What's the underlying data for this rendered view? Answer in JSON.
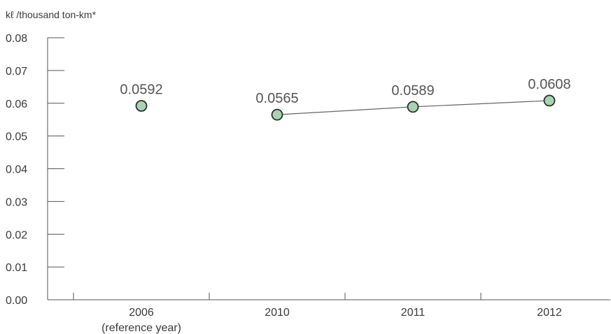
{
  "chart_data": {
    "type": "line",
    "unit_label": "kℓ /thousand ton-km*",
    "categories": [
      "2006",
      "2010",
      "2011",
      "2012"
    ],
    "category_sublabels": [
      "(reference year)",
      "",
      "",
      ""
    ],
    "series": [
      {
        "values": [
          0.0592,
          0.0565,
          0.0589,
          0.0608
        ],
        "data_labels": [
          "0.0592",
          "0.0565",
          "0.0589",
          "0.0608"
        ],
        "connected_from_index": 1
      }
    ],
    "ylim": [
      0,
      0.08
    ],
    "y_ticks": [
      0.0,
      0.01,
      0.02,
      0.03,
      0.04,
      0.05,
      0.06,
      0.07,
      0.08
    ],
    "y_tick_labels": [
      "0.00",
      "0.01",
      "0.02",
      "0.03",
      "0.04",
      "0.05",
      "0.06",
      "0.07",
      "0.08"
    ],
    "grid": false,
    "legend": "none",
    "colors": {
      "marker_fill": "#a9d4b0",
      "marker_stroke": "#2e2e2e",
      "line": "#666666",
      "axis": "#555555"
    }
  }
}
